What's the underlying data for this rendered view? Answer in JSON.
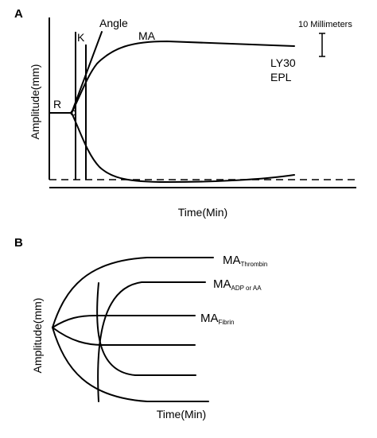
{
  "panel_a": {
    "label": "A",
    "r_label": "R",
    "k_label": "K",
    "angle_label": "Angle",
    "ma_label": "MA",
    "scale_label": "10 Millimeters",
    "ly30_label": "LY30",
    "epl_label": "EPL",
    "y_axis_label": "Amplitude(mm)",
    "x_axis_label": "Time(Min)"
  },
  "panel_b": {
    "label": "B",
    "ma_thrombin": {
      "base": "MA",
      "sub": "Thrombin"
    },
    "ma_adp": {
      "base": "MA",
      "sub": "ADP or AA"
    },
    "ma_fibrin": {
      "base": "MA",
      "sub": "Fibrin"
    },
    "y_axis_label": "Amplitude(mm)",
    "x_axis_label": "Time(Min)"
  }
}
